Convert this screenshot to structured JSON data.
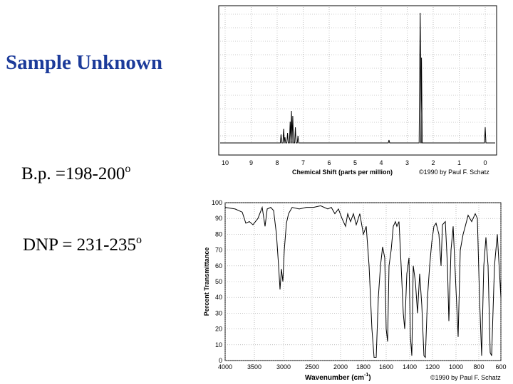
{
  "slide": {
    "title": "Sample Unknown",
    "bp": {
      "text": "B.p. =198-200",
      "sup": "o"
    },
    "dnp": {
      "text": "DNP = 231-235",
      "sup": "o"
    }
  },
  "nmr": {
    "x_ticks": [
      10,
      9,
      8,
      7,
      6,
      5,
      4,
      3,
      2,
      1,
      0
    ],
    "x_label": "Chemical Shift (parts per million)",
    "copyright": "©1990 by Paul F. Schatz"
  },
  "ir": {
    "y_ticks": [
      100,
      90,
      80,
      70,
      60,
      50,
      40,
      30,
      20,
      10,
      0
    ],
    "x_ticks": [
      4000,
      3500,
      3000,
      2500,
      2000,
      1800,
      1600,
      1400,
      1200,
      1000,
      800,
      600
    ],
    "y_label": "Percent Transmittance",
    "x_label": "Wavenumber (cm",
    "x_label_sup": "-1",
    "x_label_end": ")",
    "copyright": "©1990 by Paul F. Schatz"
  }
}
